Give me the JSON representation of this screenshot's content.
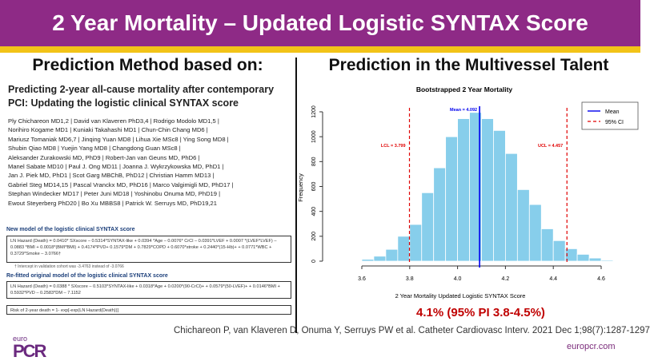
{
  "header": {
    "title": "2 Year Mortality – Updated Logistic SYNTAX Score"
  },
  "left": {
    "subtitle": "Prediction Method based on:",
    "paper_title": "Predicting 2-year all-cause mortality after contemporary PCI: Updating the logistic clinical SYNTAX score",
    "authors": [
      "Ply Chichareon MD1,2 | David van Klaveren PhD3,4 | Rodrigo Modolo MD1,5 |",
      "Norihiro Kogame MD1 | Kuniaki Takahashi MD1 | Chun-Chin Chang MD6 |",
      "Mariusz Tomaniak MD6,7 | Jinqing Yuan MD8 | Lihua Xie MSc8 | Ying Song MD8 |",
      "Shubin Qiao MD8 | Yuejin Yang MD8 | Changdong Guan MSc8 |",
      "Aleksander Zurakowski MD, PhD9 | Robert-Jan van Geuns MD, PhD6 |",
      "Manel Sabate MD10 | Paul J. Ong MD11 | Joanna J. Wykrzykowska MD, PhD1 |",
      "Jan J. Piek MD, PhD1 | Scot Garg MBChB, PhD12 | Christian Hamm MD13 |",
      "Gabriel Steg MD14,15 | Pascal Vranckx MD, PhD16 | Marco Valgimigli MD, PhD17 |",
      "Stephan Windecker MD17 | Peter Juni MD18 | Yoshinobu Onuma MD, PhD19 |",
      "Ewout Steyerberg PhD20 | Bo Xu MBBS8 | Patrick W. Serruys MD, PhD19,21"
    ],
    "new_model_heading": "New model of the logistic clinical SYNTAX score",
    "new_model_formula": "LN Hazard (Death) = 0.0410* SXscore – 0.5314*SYNTAX-like + 0.0394 *Age – 0.0076* CrCl – 0.0391*LVEF + 0.0007 *(LVEF*LVEF) – 0.0883 *BMI + 0.0018*(BMI*BMI) + 0.4174*PVD+ 0.1579*DM + 0.7829*COPD + 0.6070*stroke + 0.2440*(15-Hb)+ + 0.0771*WBC + 0.3729*Smoke – 3.0766†",
    "note": "† Intercept in validation cohort was -3.4763 instead of -3.0766",
    "refit_heading": "Re-fitted original model of the logistic clinical SYNTAX score",
    "refit_formula": "LN Hazard (Death) = 0.0388 * SXscore – 0.5103*SYNTAX-like + 0.0318*Age + 0.0200*(90-CrCl)+ + 0.0579*(50-LVEF)+ + 0.0146*BMI + 0.5932*PVD – 0.2583*DM – 7.1152",
    "risk_formula": "Risk of 2-year death = 1- exp[-exp(LN Hazard(Death))]"
  },
  "right": {
    "subtitle": "Prediction in the Multivessel Talent",
    "result": "4.1% (95% PI 3.8-4.5%)"
  },
  "chart_data": {
    "type": "bar",
    "title": "Bootstrapped 2 Year Mortality",
    "xlabel": "2 Year Mortality Updated Logistic SYNTAX Score",
    "ylabel": "Frequency",
    "bin_width": 0.05,
    "bin_starts": [
      3.5,
      3.55,
      3.6,
      3.65,
      3.7,
      3.75,
      3.8,
      3.85,
      3.9,
      3.95,
      4.0,
      4.05,
      4.1,
      4.15,
      4.2,
      4.25,
      4.3,
      4.35,
      4.4,
      4.45,
      4.5,
      4.55,
      4.6,
      4.65
    ],
    "values": [
      2,
      3,
      15,
      40,
      95,
      200,
      295,
      550,
      750,
      1000,
      1145,
      1195,
      1145,
      1050,
      865,
      575,
      455,
      260,
      165,
      100,
      55,
      25,
      8,
      3
    ],
    "xlim": [
      3.5,
      4.7
    ],
    "ylim": [
      0,
      1200
    ],
    "xticks": [
      "3.6",
      "3.8",
      "4.0",
      "4.2",
      "4.4",
      "4.6"
    ],
    "yticks": [
      "0",
      "200",
      "400",
      "600",
      "800",
      "1000",
      "1200"
    ],
    "mean": 4.092,
    "lcl": 3.799,
    "ucl": 4.457,
    "mean_label": "Mean = 4.092",
    "lcl_label": "LCL = 3.799",
    "ucl_label": "UCL = 4.457",
    "legend": [
      "Mean",
      "95% CI"
    ],
    "legend_position": "top-right",
    "bar_color": "#87ceeb",
    "mean_color": "#0000ee",
    "ci_color": "#e00000"
  },
  "footer": {
    "citation": "Chichareon P, van Klaveren D, Onuma Y, Serruys PW et al. Catheter Cardiovasc Interv. 2021 Dec 1;98(7):1287-1297",
    "url": "europcr.com",
    "logo": "euro PCR"
  }
}
